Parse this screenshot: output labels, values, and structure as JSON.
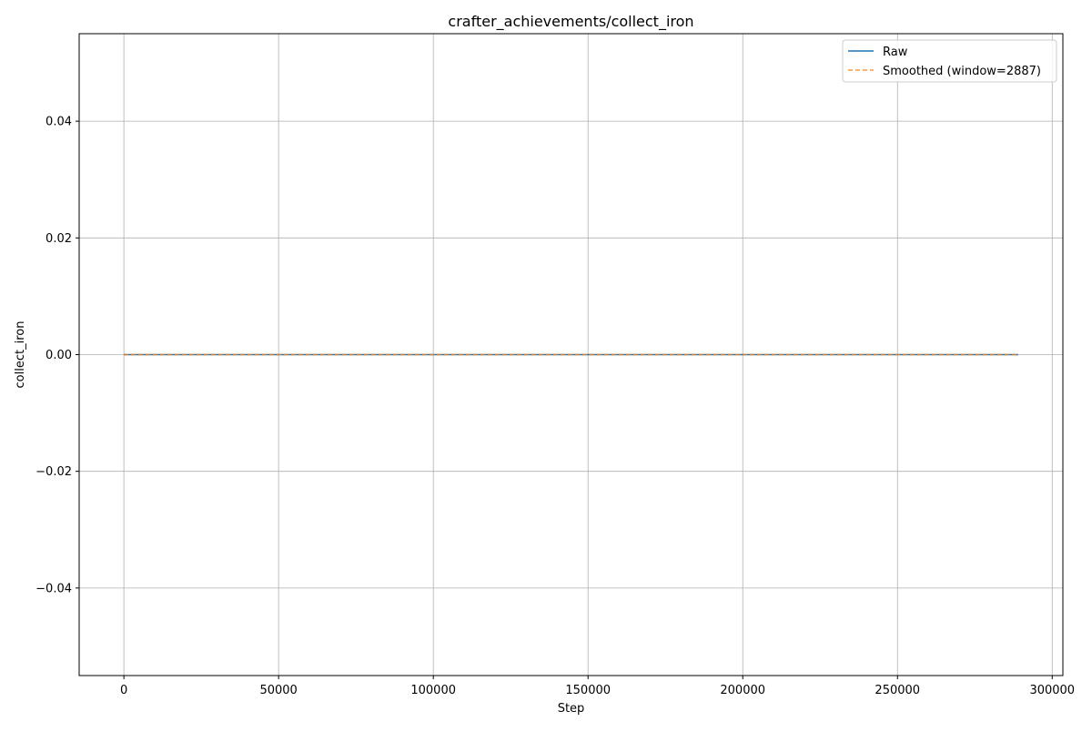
{
  "chart_data": {
    "type": "line",
    "title": "crafter_achievements/collect_iron",
    "xlabel": "Step",
    "ylabel": "collect_iron",
    "xlim": [
      -14450,
      303450
    ],
    "ylim": [
      -0.055,
      0.055
    ],
    "xticks": [
      0,
      50000,
      100000,
      150000,
      200000,
      250000,
      300000
    ],
    "xtick_labels": [
      "0",
      "50000",
      "100000",
      "150000",
      "200000",
      "250000",
      "300000"
    ],
    "yticks": [
      -0.04,
      -0.02,
      0.0,
      0.02,
      0.04
    ],
    "ytick_labels": [
      "−0.04",
      "−0.02",
      "0.00",
      "0.02",
      "0.04"
    ],
    "grid": true,
    "legend_position": "top-right",
    "series": [
      {
        "name": "Raw",
        "style": "solid",
        "color": "#1f77b4",
        "x": [
          0,
          289000
        ],
        "y": [
          0.0,
          0.0
        ]
      },
      {
        "name": "Smoothed (window=2887)",
        "style": "dashed",
        "color": "#ff7f0e",
        "x": [
          0,
          289000
        ],
        "y": [
          0.0,
          0.0
        ]
      }
    ]
  }
}
